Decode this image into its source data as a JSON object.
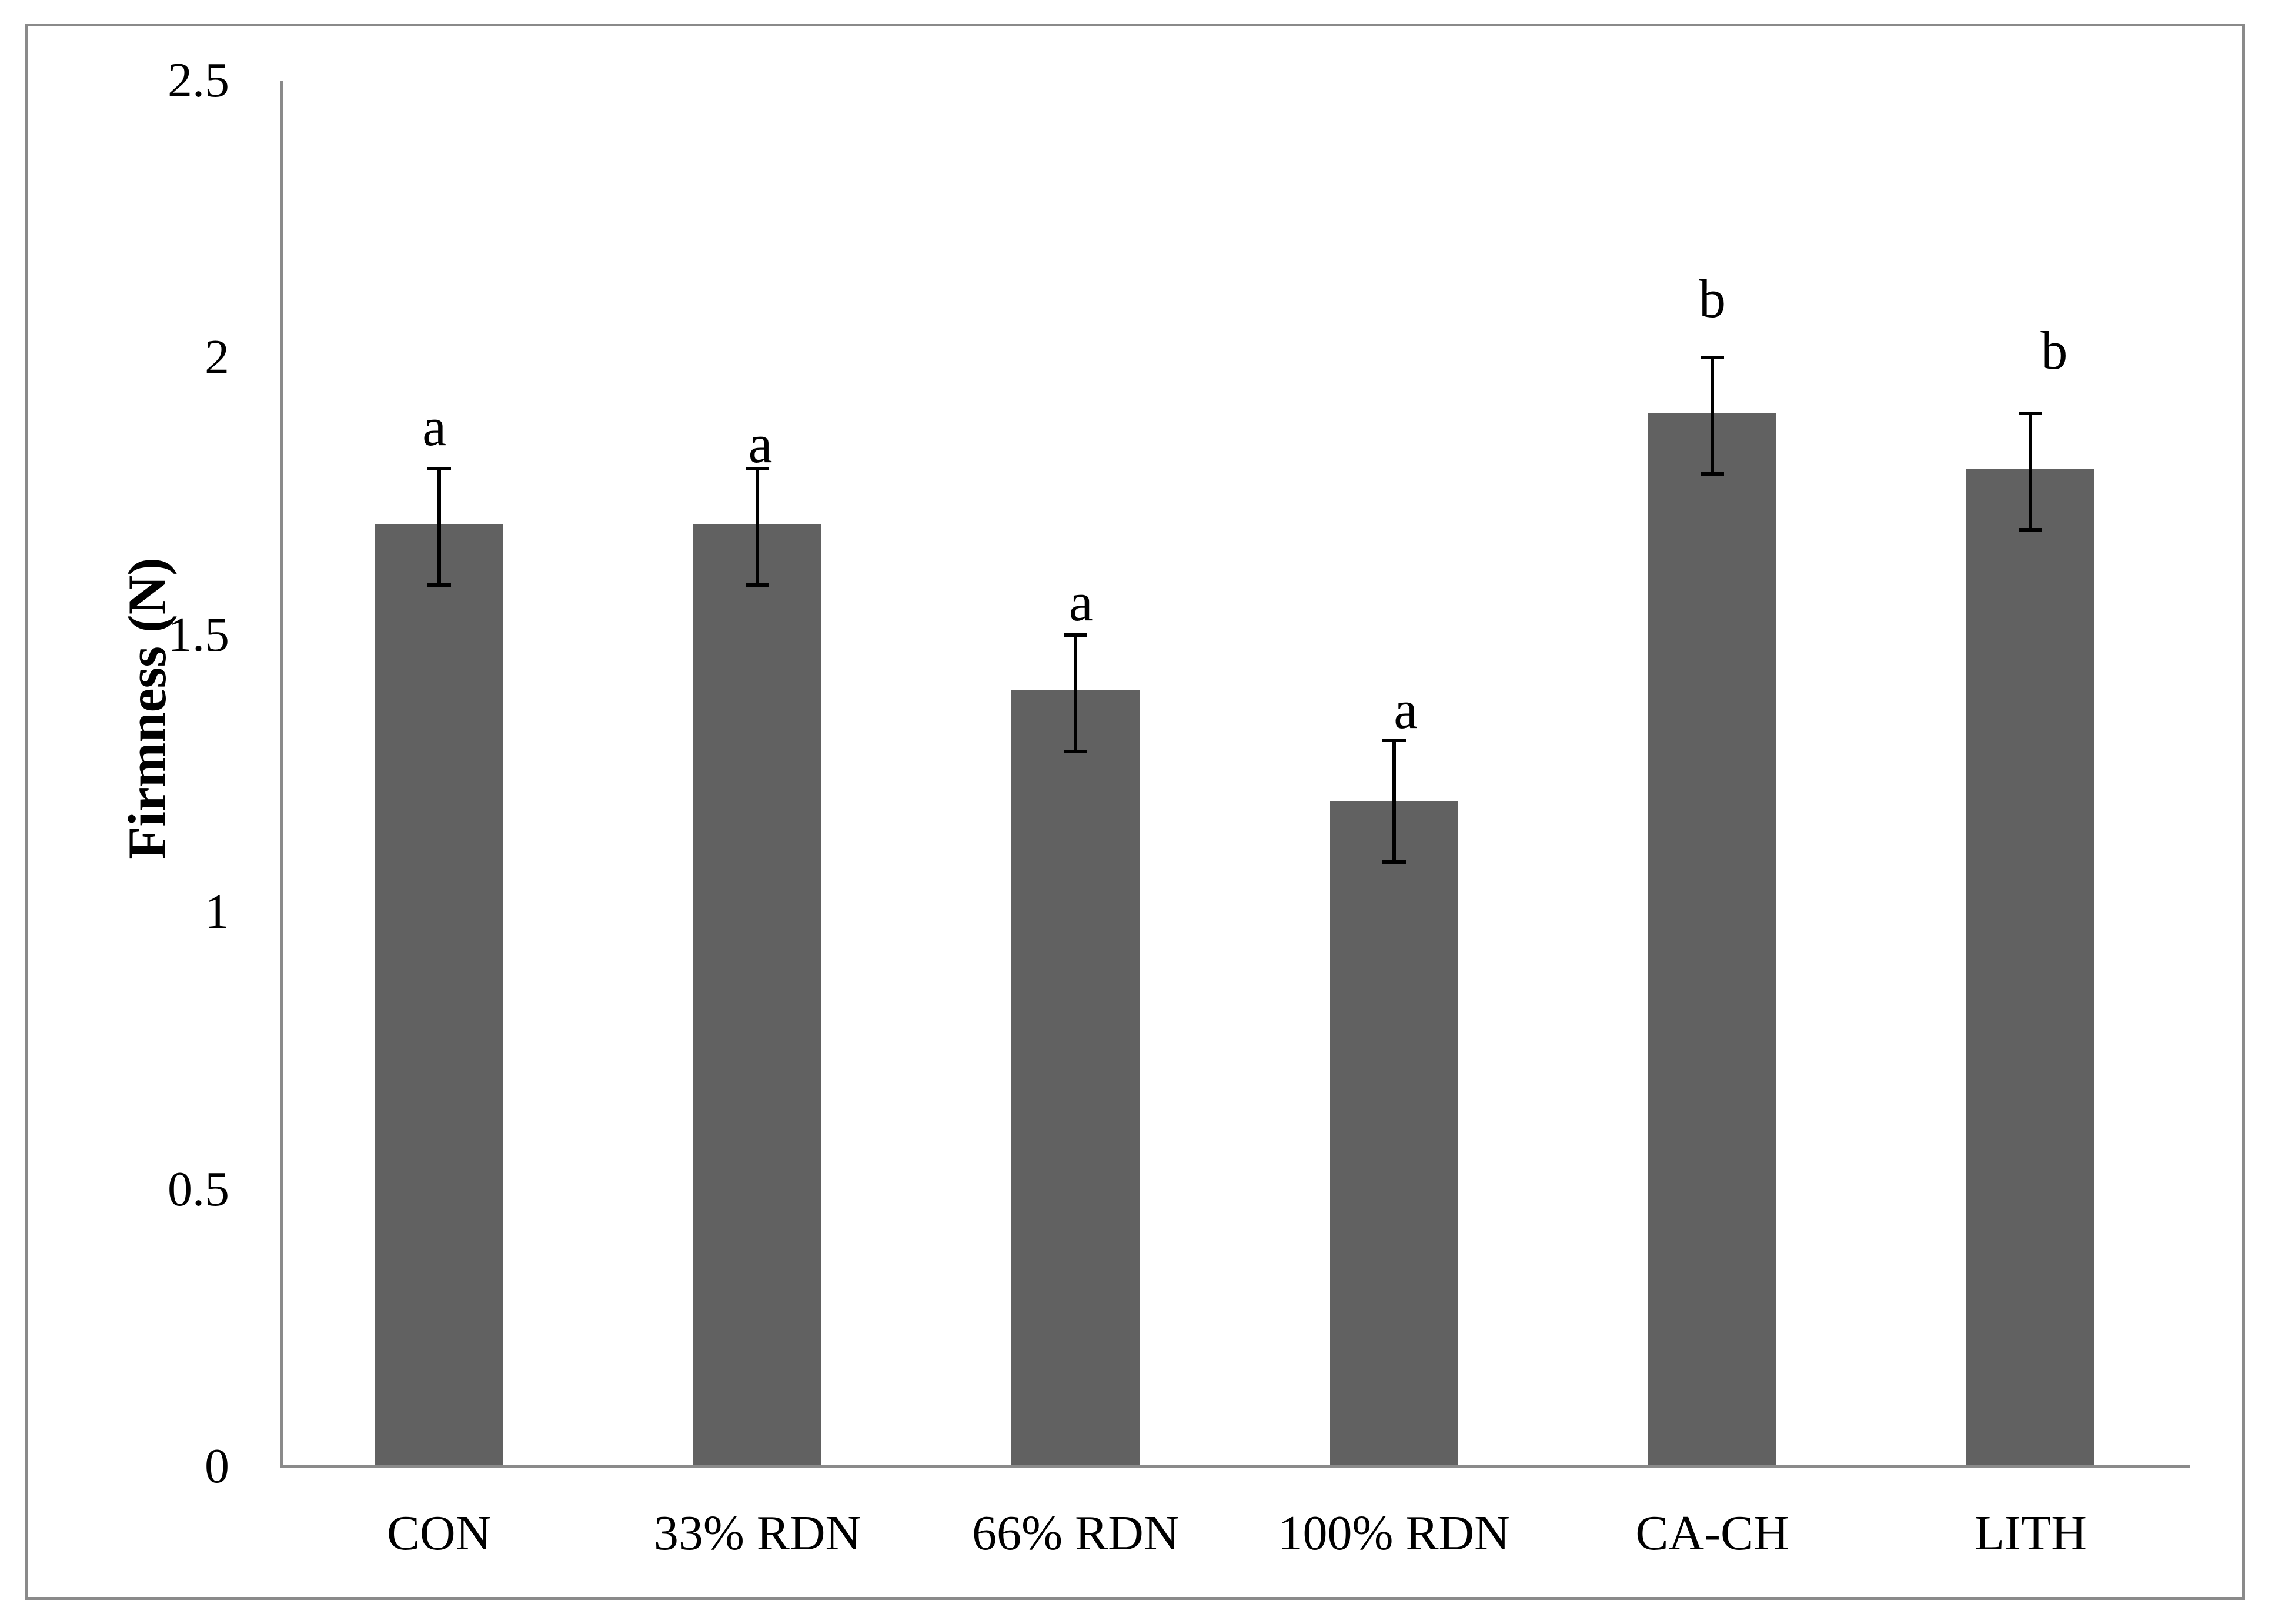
{
  "figure": {
    "background": "#ffffff",
    "border_color": "#8a8a8a"
  },
  "chart_data": {
    "type": "bar",
    "title": "",
    "xlabel": "",
    "ylabel": "Firmness (N)",
    "ylim": [
      0,
      2.5
    ],
    "yticks": [
      0,
      0.5,
      1,
      1.5,
      2,
      2.5
    ],
    "ytick_labels": [
      "0",
      "0.5",
      "1",
      "1.5",
      "2",
      "2.5"
    ],
    "categories": [
      "CON",
      "33% RDN",
      "66% RDN",
      "100% RDN",
      "CA-CH",
      "LITH"
    ],
    "values": [
      1.7,
      1.7,
      1.4,
      1.2,
      1.9,
      1.8
    ],
    "error_low": [
      1.59,
      1.59,
      1.29,
      1.09,
      1.79,
      1.69
    ],
    "error_high": [
      1.8,
      1.8,
      1.5,
      1.31,
      2.0,
      1.9
    ],
    "sig_letters": [
      "a",
      "a",
      "a",
      "a",
      "b",
      "b"
    ],
    "bar_color": "#616161",
    "error_color": "#000000",
    "axis_color": "#8a8a8a",
    "grid": false,
    "legend": null,
    "layout_hints": {
      "letter_offsets_px": [
        71,
        42,
        56,
        52,
        100,
        107
      ],
      "letter_x_offsets_px": [
        -8,
        5,
        9,
        20,
        0,
        40
      ]
    }
  }
}
